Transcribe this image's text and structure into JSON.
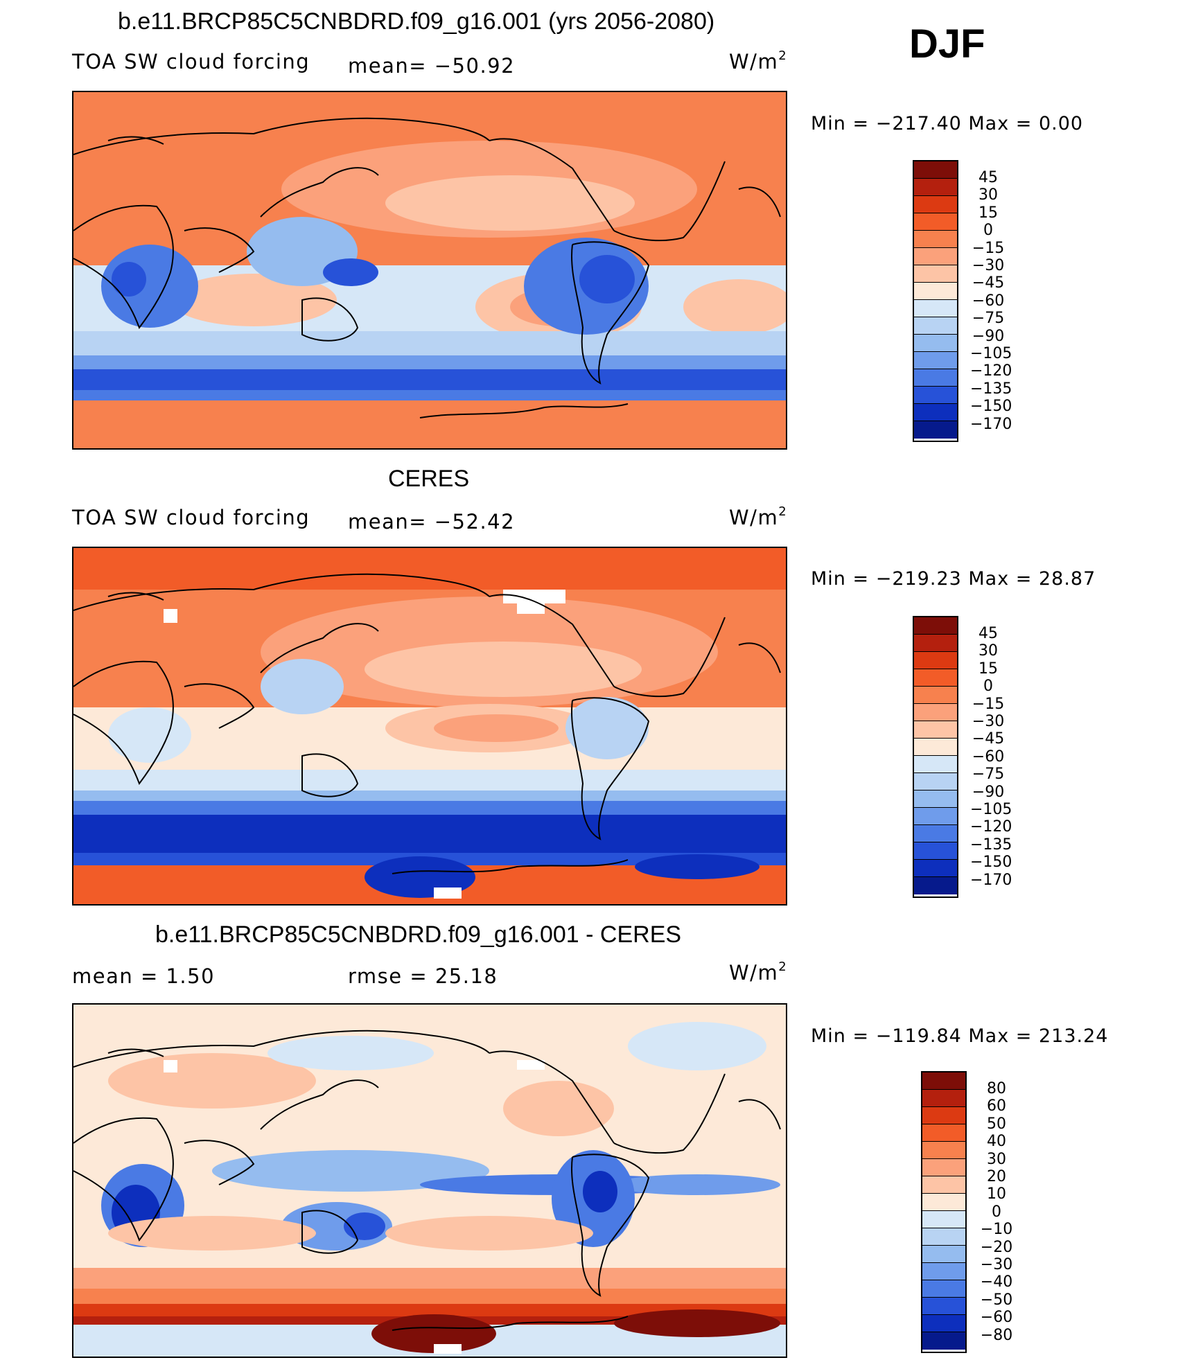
{
  "season": "DJF",
  "units_base": "W/m",
  "units_sup": "2",
  "panels": [
    {
      "title": "b.e11.BRCP85C5CNBDRD.f09_g16.001 (yrs 2056-2080)",
      "left_text": "TOA SW cloud forcing",
      "center_text": "mean= −50.92",
      "minmax": "Min = −217.40 Max =    0.00",
      "levels": [
        "45",
        "30",
        "15",
        "0",
        "−15",
        "−30",
        "−45",
        "−60",
        "−75",
        "−90",
        "−105",
        "−120",
        "−135",
        "−150",
        "−170"
      ]
    },
    {
      "title": "CERES",
      "left_text": "TOA SW cloud forcing",
      "center_text": "mean= −52.42",
      "minmax": "Min = −219.23 Max =   28.87",
      "levels": [
        "45",
        "30",
        "15",
        "0",
        "−15",
        "−30",
        "−45",
        "−60",
        "−75",
        "−90",
        "−105",
        "−120",
        "−135",
        "−150",
        "−170"
      ]
    },
    {
      "title": "b.e11.BRCP85C5CNBDRD.f09_g16.001 - CERES",
      "left_text": "mean =    1.50",
      "center_text": "rmse =   25.18",
      "minmax": "Min = −119.84 Max = 213.24",
      "levels": [
        "80",
        "60",
        "50",
        "40",
        "30",
        "20",
        "10",
        "0",
        "−10",
        "−20",
        "−30",
        "−40",
        "−50",
        "−60",
        "−80"
      ]
    }
  ],
  "colors": {
    "scale": [
      "#7d0e08",
      "#b4200e",
      "#dc3a12",
      "#f25c28",
      "#f7814e",
      "#fba17b",
      "#fdc4a6",
      "#fde9d8",
      "#d6e7f7",
      "#b8d3f3",
      "#95bcef",
      "#6f9ceb",
      "#4a7ae4",
      "#2752d8",
      "#0d2fbd",
      "#061a8c"
    ],
    "land_outline": "#000000"
  }
}
